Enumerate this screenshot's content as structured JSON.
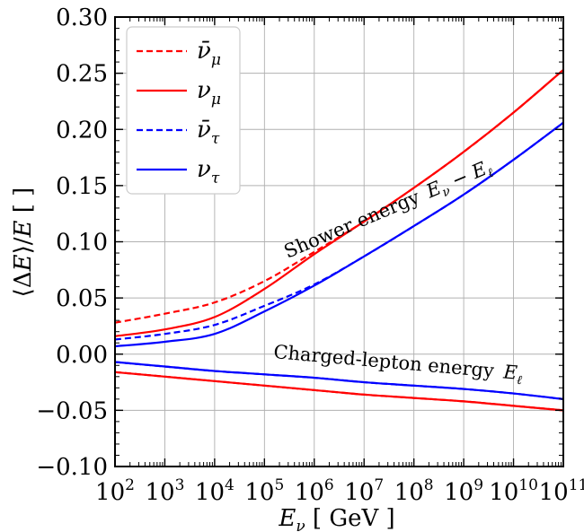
{
  "chart_data": {
    "type": "line",
    "x_scale": "log",
    "xlabel": "E_ν [ GeV ]",
    "ylabel": "⟨ΔE⟩/E [ ]",
    "xlim": [
      100,
      100000000000
    ],
    "ylim": [
      -0.1,
      0.3
    ],
    "grid": true,
    "legend_position": "top-left",
    "x_ticks": [
      {
        "value": 100,
        "base": "10",
        "exp": "2"
      },
      {
        "value": 1000,
        "base": "10",
        "exp": "3"
      },
      {
        "value": 10000,
        "base": "10",
        "exp": "4"
      },
      {
        "value": 100000,
        "base": "10",
        "exp": "5"
      },
      {
        "value": 1000000,
        "base": "10",
        "exp": "6"
      },
      {
        "value": 10000000,
        "base": "10",
        "exp": "7"
      },
      {
        "value": 100000000,
        "base": "10",
        "exp": "8"
      },
      {
        "value": 1000000000,
        "base": "10",
        "exp": "9"
      },
      {
        "value": 10000000000,
        "base": "10",
        "exp": "10"
      },
      {
        "value": 100000000000,
        "base": "10",
        "exp": "11"
      }
    ],
    "y_ticks": [
      {
        "value": -0.1,
        "label": "−0.10"
      },
      {
        "value": -0.05,
        "label": "−0.05"
      },
      {
        "value": 0.0,
        "label": "0.00"
      },
      {
        "value": 0.05,
        "label": "0.05"
      },
      {
        "value": 0.1,
        "label": "0.10"
      },
      {
        "value": 0.15,
        "label": "0.15"
      },
      {
        "value": 0.2,
        "label": "0.20"
      },
      {
        "value": 0.25,
        "label": "0.25"
      },
      {
        "value": 0.3,
        "label": "0.30"
      }
    ],
    "x": [
      100,
      1000,
      10000,
      100000,
      1000000,
      10000000,
      100000000,
      1000000000,
      10000000000,
      100000000000
    ],
    "series": [
      {
        "name": "ν̄_μ",
        "group": "shower",
        "color": "#ff0000",
        "dash": true,
        "values": [
          0.028,
          0.036,
          0.046,
          0.065,
          0.091,
          0.118,
          0.148,
          0.18,
          0.215,
          0.253
        ]
      },
      {
        "name": "ν_μ",
        "group": "shower",
        "color": "#ff0000",
        "dash": false,
        "values": [
          0.016,
          0.022,
          0.033,
          0.058,
          0.089,
          0.118,
          0.148,
          0.18,
          0.215,
          0.253
        ]
      },
      {
        "name": "ν̄_τ",
        "group": "shower",
        "color": "#0000ff",
        "dash": true,
        "values": [
          0.013,
          0.018,
          0.026,
          0.043,
          0.062,
          0.087,
          0.114,
          0.142,
          0.173,
          0.206
        ]
      },
      {
        "name": "ν_τ",
        "group": "shower",
        "color": "#0000ff",
        "dash": false,
        "values": [
          0.007,
          0.011,
          0.018,
          0.038,
          0.061,
          0.087,
          0.114,
          0.142,
          0.173,
          0.206
        ]
      },
      {
        "name": "ν̄_μ",
        "group": "lepton",
        "color": "#ff0000",
        "dash": true,
        "in_legend": false,
        "values": [
          -0.016,
          -0.02,
          -0.024,
          -0.028,
          -0.032,
          -0.036,
          -0.039,
          -0.042,
          -0.046,
          -0.05
        ]
      },
      {
        "name": "ν_μ",
        "group": "lepton",
        "color": "#ff0000",
        "dash": false,
        "in_legend": false,
        "values": [
          -0.016,
          -0.02,
          -0.024,
          -0.028,
          -0.032,
          -0.036,
          -0.039,
          -0.042,
          -0.046,
          -0.05
        ]
      },
      {
        "name": "ν̄_τ",
        "group": "lepton",
        "color": "#0000ff",
        "dash": true,
        "in_legend": false,
        "values": [
          -0.007,
          -0.011,
          -0.015,
          -0.018,
          -0.021,
          -0.025,
          -0.028,
          -0.031,
          -0.035,
          -0.04
        ]
      },
      {
        "name": "ν_τ",
        "group": "lepton",
        "color": "#0000ff",
        "dash": false,
        "in_legend": false,
        "values": [
          -0.007,
          -0.011,
          -0.015,
          -0.018,
          -0.021,
          -0.025,
          -0.028,
          -0.031,
          -0.035,
          -0.04
        ]
      }
    ],
    "legend": [
      {
        "base": "ν̄",
        "sub": "μ",
        "color": "#ff0000",
        "dash": true
      },
      {
        "base": "ν",
        "sub": "μ",
        "color": "#ff0000",
        "dash": false
      },
      {
        "base": "ν̄",
        "sub": "τ",
        "color": "#0000ff",
        "dash": true
      },
      {
        "base": "ν",
        "sub": "τ",
        "color": "#0000ff",
        "dash": false
      }
    ],
    "annotations": {
      "shower": {
        "text": "Shower energy",
        "math": "E_ν − E_ℓ"
      },
      "lepton": {
        "text": "Charged-lepton energy",
        "math": "E_ℓ"
      }
    }
  }
}
